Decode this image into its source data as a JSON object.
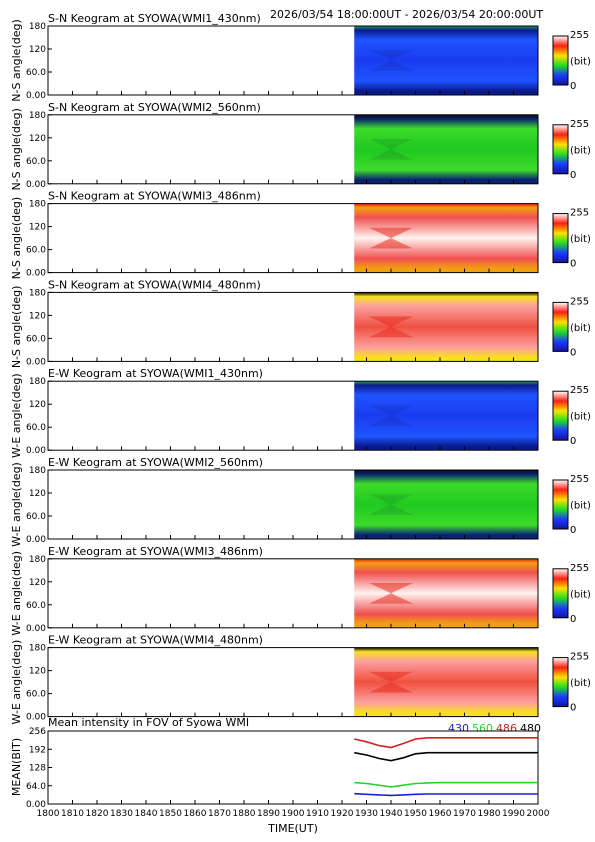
{
  "header": {
    "time_range": "2026/03/54 18:00:00UT - 2026/03/54 20:00:00UT"
  },
  "keograms": [
    {
      "title": "S-N Keogram at SYOWA(WMI1_430nm)",
      "ylabel": "N-S angle(deg)",
      "colormap": "blue",
      "brightness": "low"
    },
    {
      "title": "S-N Keogram at SYOWA(WMI2_560nm)",
      "ylabel": "N-S angle(deg)",
      "colormap": "green",
      "brightness": "medium"
    },
    {
      "title": "S-N Keogram at SYOWA(WMI3_486nm)",
      "ylabel": "N-S angle(deg)",
      "colormap": "red-white",
      "brightness": "high"
    },
    {
      "title": "S-N Keogram at SYOWA(WMI4_480nm)",
      "ylabel": "N-S angle(deg)",
      "colormap": "red",
      "brightness": "high"
    },
    {
      "title": "E-W Keogram at SYOWA(WMI1_430nm)",
      "ylabel": "W-E angle(deg)",
      "colormap": "blue",
      "brightness": "low"
    },
    {
      "title": "E-W Keogram at SYOWA(WMI2_560nm)",
      "ylabel": "W-E angle(deg)",
      "colormap": "green",
      "brightness": "medium"
    },
    {
      "title": "E-W Keogram at SYOWA(WMI3_486nm)",
      "ylabel": "W-E angle(deg)",
      "colormap": "red-white",
      "brightness": "high"
    },
    {
      "title": "E-W Keogram at SYOWA(WMI4_480nm)",
      "ylabel": "W-E angle(deg)",
      "colormap": "red",
      "brightness": "high"
    }
  ],
  "keogram_axis": {
    "y_ticks": [
      "180",
      "120",
      "60.0",
      "0.00"
    ],
    "ylim": [
      0,
      180
    ],
    "data_start_x": 1925,
    "colorbar": {
      "max_label": "255",
      "unit_label": "(bit)",
      "min_label": "0",
      "range": [
        0,
        255
      ]
    }
  },
  "chart_data": {
    "type": "line",
    "title": "Mean intensity in FOV of Syowa WMI",
    "xlabel": "TIME(UT)",
    "ylabel": "MEAN(BIT)",
    "xlim": [
      1800,
      2000
    ],
    "ylim": [
      0,
      256
    ],
    "x_ticks": [
      "1800",
      "1810",
      "1820",
      "1830",
      "1840",
      "1850",
      "1860",
      "1870",
      "1880",
      "1890",
      "1900",
      "1910",
      "1920",
      "1930",
      "1940",
      "1950",
      "1960",
      "1970",
      "1980",
      "1990",
      "2000"
    ],
    "y_ticks": [
      "256",
      "192",
      "128",
      "64.0",
      "0.00"
    ],
    "x": [
      1925,
      1930,
      1935,
      1940,
      1945,
      1950,
      1955,
      1960,
      2000
    ],
    "series": [
      {
        "name": "430",
        "color": "#1f1fd0",
        "values": [
          36,
          34,
          32,
          30,
          32,
          34,
          35,
          35,
          35
        ]
      },
      {
        "name": "560",
        "color": "#2bd12b",
        "values": [
          75,
          72,
          66,
          60,
          66,
          72,
          74,
          75,
          75
        ]
      },
      {
        "name": "486",
        "color": "#d01f1f",
        "values": [
          228,
          218,
          205,
          198,
          212,
          228,
          232,
          232,
          232
        ]
      },
      {
        "name": "480",
        "color": "#000000",
        "values": [
          180,
          172,
          160,
          152,
          162,
          176,
          180,
          180,
          180
        ]
      }
    ],
    "grid": false,
    "legend_position": "top-right"
  }
}
